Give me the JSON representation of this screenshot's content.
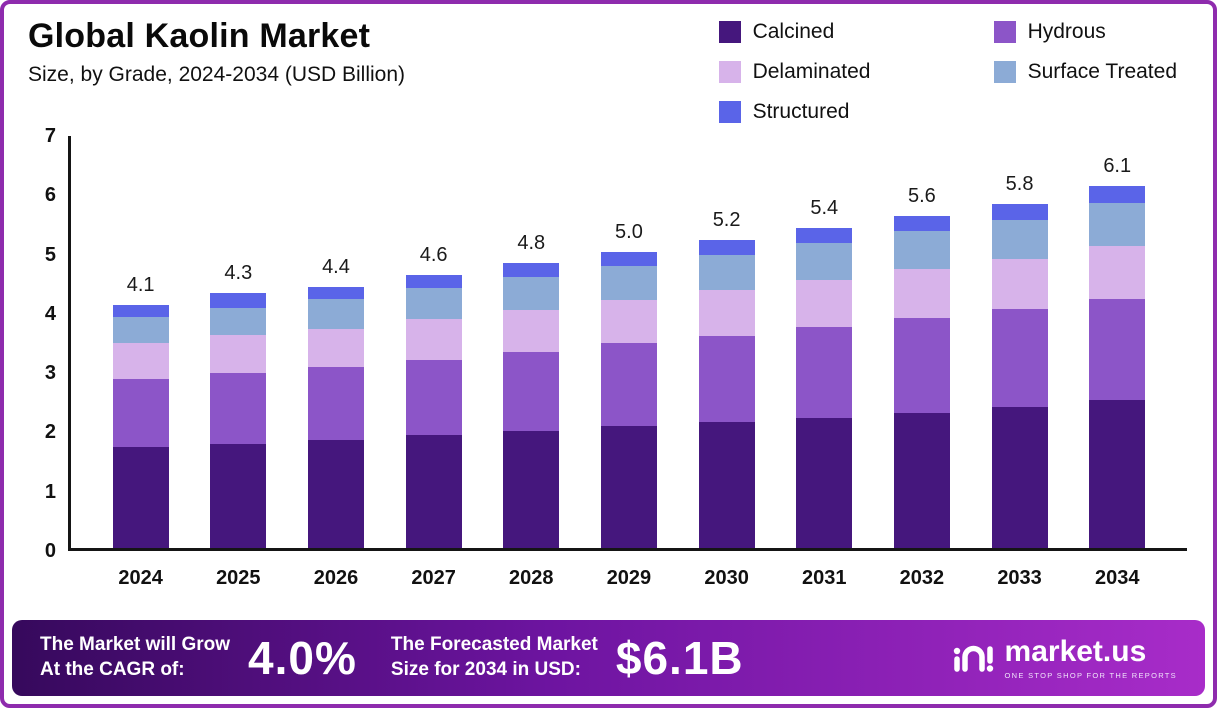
{
  "header": {
    "title": "Global Kaolin Market",
    "subtitle": "Size, by Grade, 2024-2034 (USD Billion)"
  },
  "chart_data": {
    "type": "bar",
    "stacked": true,
    "title": "Global Kaolin Market Size, by Grade, 2024-2034 (USD Billion)",
    "categories": [
      "2024",
      "2025",
      "2026",
      "2027",
      "2028",
      "2029",
      "2030",
      "2031",
      "2032",
      "2033",
      "2034"
    ],
    "series": [
      {
        "name": "Calcined",
        "color": "#45177d",
        "values": [
          1.7,
          1.75,
          1.82,
          1.9,
          1.98,
          2.05,
          2.12,
          2.2,
          2.28,
          2.38,
          2.5
        ]
      },
      {
        "name": "Hydrous",
        "color": "#8c55c8",
        "values": [
          1.15,
          1.2,
          1.23,
          1.27,
          1.32,
          1.4,
          1.46,
          1.52,
          1.6,
          1.65,
          1.7
        ]
      },
      {
        "name": "Delaminated",
        "color": "#d7b3ea",
        "values": [
          0.6,
          0.65,
          0.65,
          0.7,
          0.72,
          0.73,
          0.77,
          0.8,
          0.82,
          0.85,
          0.9
        ]
      },
      {
        "name": "Surface Treated",
        "color": "#8cabd6",
        "values": [
          0.45,
          0.45,
          0.5,
          0.51,
          0.55,
          0.57,
          0.6,
          0.62,
          0.64,
          0.66,
          0.72
        ]
      },
      {
        "name": "Structured",
        "color": "#5a64e8",
        "values": [
          0.2,
          0.25,
          0.2,
          0.22,
          0.23,
          0.25,
          0.25,
          0.26,
          0.26,
          0.26,
          0.28
        ]
      }
    ],
    "totals": [
      "4.1",
      "4.3",
      "4.4",
      "4.6",
      "4.8",
      "5.0",
      "5.2",
      "5.4",
      "5.6",
      "5.8",
      "6.1"
    ],
    "ylim": [
      0,
      7
    ],
    "yticks": [
      "0",
      "1",
      "2",
      "3",
      "4",
      "5",
      "6",
      "7"
    ],
    "grid": false,
    "legend_position": "top-right"
  },
  "footer": {
    "cagr_label_line1": "The Market will Grow",
    "cagr_label_line2": "At the CAGR of:",
    "cagr_value": "4.0%",
    "forecast_label_line1": "The Forecasted Market",
    "forecast_label_line2": "Size for 2034 in USD:",
    "forecast_value": "$6.1B",
    "brand_name": "market.us",
    "brand_tagline": "ONE STOP SHOP FOR THE REPORTS"
  }
}
